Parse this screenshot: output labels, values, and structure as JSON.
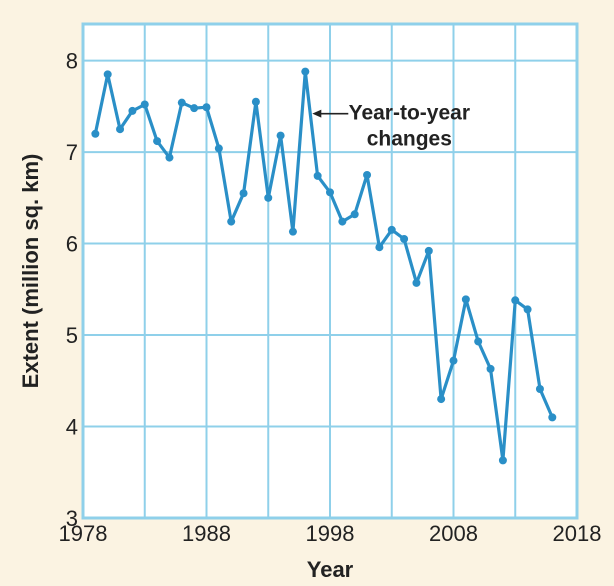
{
  "chart_data": {
    "type": "line",
    "xlabel": "Year",
    "ylabel": "Extent (million sq. km)",
    "xlim": [
      1978,
      2018
    ],
    "ylim": [
      3,
      8.4
    ],
    "x_ticks": [
      1978,
      1988,
      1998,
      2008,
      2018
    ],
    "y_ticks": [
      3,
      4,
      5,
      6,
      7,
      8
    ],
    "x_grid_step": 5,
    "y_grid_step": 1,
    "grid": true,
    "colors": {
      "line": "#2a8fc7",
      "grid": "#8fd0ea",
      "plot_background": "#ffffff",
      "page_background": "#fbf3e2",
      "annotation": "#222222"
    },
    "series": [
      {
        "x": [
          1979,
          1980,
          1981,
          1982,
          1983,
          1984,
          1985,
          1986,
          1987,
          1988,
          1989,
          1990,
          1991,
          1992,
          1993,
          1994,
          1995,
          1996,
          1997,
          1998,
          1999,
          2000,
          2001,
          2002,
          2003,
          2004,
          2005,
          2006,
          2007,
          2008,
          2009,
          2010,
          2011,
          2012,
          2013,
          2014,
          2015,
          2016
        ],
        "values": [
          7.2,
          7.85,
          7.25,
          7.45,
          7.52,
          7.12,
          6.94,
          7.54,
          7.48,
          7.49,
          7.04,
          6.24,
          6.55,
          7.55,
          6.5,
          7.18,
          6.13,
          7.88,
          6.74,
          6.56,
          6.24,
          6.32,
          6.75,
          5.96,
          6.15,
          6.05,
          5.57,
          5.92,
          4.3,
          4.72,
          5.39,
          4.93,
          4.63,
          3.63,
          5.38,
          5.28,
          4.41,
          4.1
        ]
      }
    ],
    "annotation": {
      "line1": "Year-to-year",
      "line2": "changes",
      "target_x": 1996,
      "target_y": 7.42
    }
  }
}
